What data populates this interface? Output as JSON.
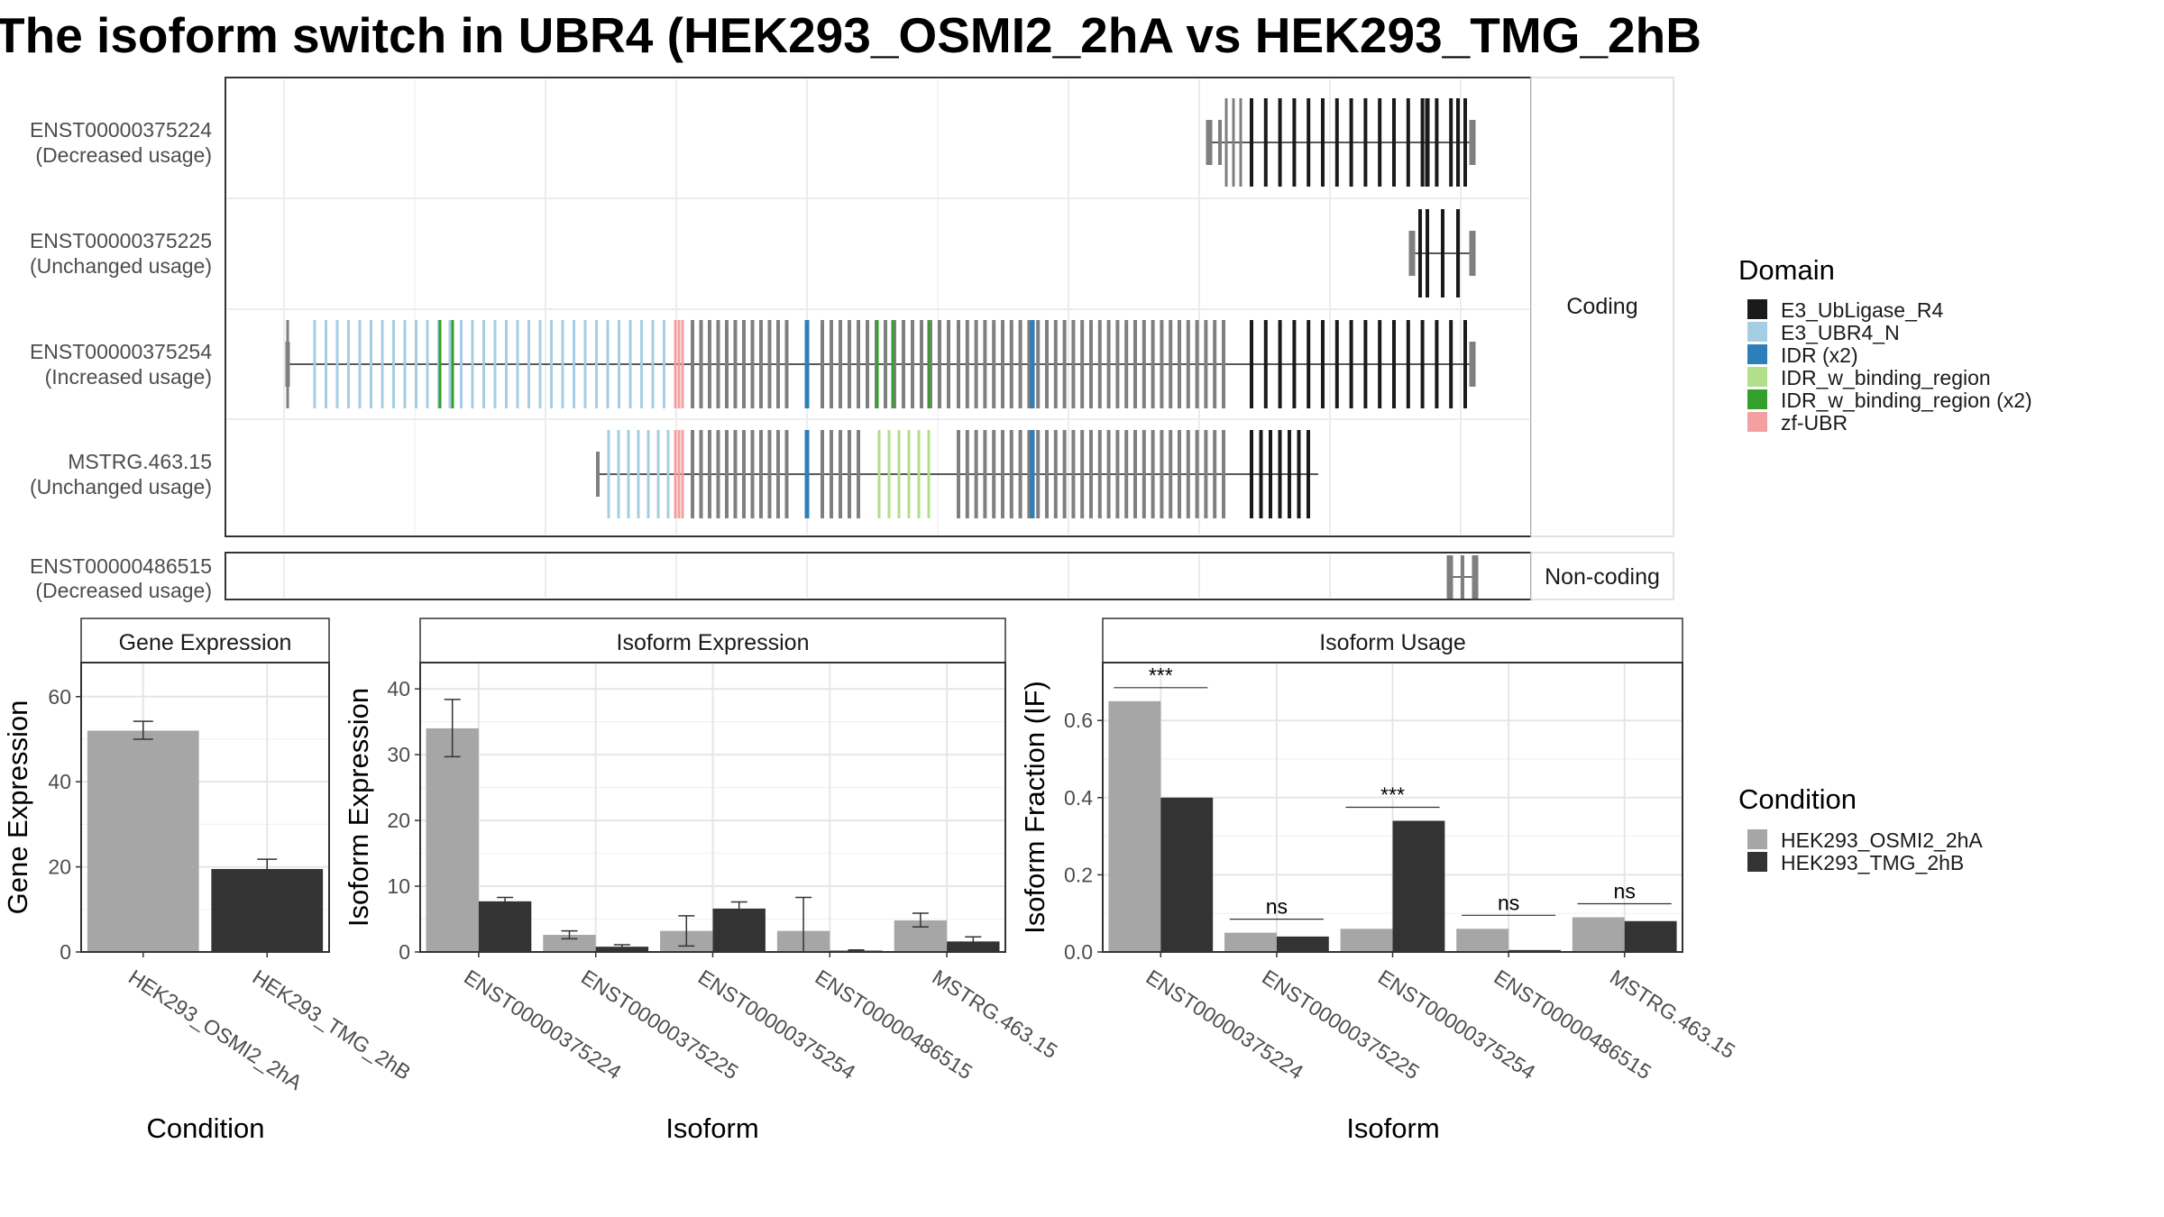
{
  "title": "The isoform switch in UBR4 (HEK293_OSMI2_2hA vs HEK293_TMG_2hB",
  "colors": {
    "coding_exon": "#7f7f7f",
    "intron_line": "#404040",
    "E3_UbLigase_R4": "#1a1a1a",
    "E3_UBR4_N": "#a6cee3",
    "IDR (x2)": "#2c7fb8",
    "IDR_w_binding_region": "#b2df8a",
    "IDR_w_binding_region (x2)": "#33a02c",
    "zf-UBR": "#f4a0a0",
    "HEK293_OSMI2_2hA": "#a6a6a6",
    "HEK293_TMG_2hB": "#333333"
  },
  "transcripts": {
    "coding_label": "Coding",
    "noncoding_label": "Non-coding",
    "coding": [
      {
        "id": "ENST00000375224",
        "status": "(Decreased usage)"
      },
      {
        "id": "ENST00000375225",
        "status": "(Unchanged usage)"
      },
      {
        "id": "ENST00000375254",
        "status": "(Increased usage)"
      },
      {
        "id": "MSTRG.463.15",
        "status": "(Unchanged usage)"
      }
    ],
    "noncoding": [
      {
        "id": "ENST00000486515",
        "status": "(Decreased usage)"
      }
    ]
  },
  "domain_legend": {
    "title": "Domain",
    "items": [
      "E3_UbLigase_R4",
      "E3_UBR4_N",
      "IDR (x2)",
      "IDR_w_binding_region",
      "IDR_w_binding_region (x2)",
      "zf-UBR"
    ]
  },
  "condition_legend": {
    "title": "Condition",
    "items": [
      "HEK293_OSMI2_2hA",
      "HEK293_TMG_2hB"
    ]
  },
  "chart_data": [
    {
      "type": "bar",
      "panel": "Gene Expression",
      "xlabel": "Condition",
      "ylabel": "Gene Expression",
      "ylim": [
        0,
        68
      ],
      "yticks": [
        0,
        20,
        40,
        60
      ],
      "grid": true,
      "categories": [
        "HEK293_OSMI2_2hA",
        "HEK293_TMG_2hB"
      ],
      "values": [
        52.0,
        19.5
      ],
      "error": [
        [
          50.0,
          54.2
        ],
        [
          17.2,
          21.8
        ]
      ]
    },
    {
      "type": "bar",
      "panel": "Isoform Expression",
      "xlabel": "Isoform",
      "ylabel": "Isoform Expression",
      "ylim": [
        0,
        44
      ],
      "yticks": [
        0,
        10,
        20,
        30,
        40
      ],
      "grid": true,
      "categories": [
        "ENST00000375224",
        "ENST00000375225",
        "ENST00000375254",
        "ENST00000486515",
        "MSTRG.463.15"
      ],
      "series": [
        {
          "name": "HEK293_OSMI2_2hA",
          "values": [
            34.0,
            2.6,
            3.2,
            3.2,
            4.8
          ],
          "error": [
            [
              29.7,
              38.4
            ],
            [
              2.0,
              3.2
            ],
            [
              0.9,
              5.5
            ],
            [
              0.0,
              8.3
            ],
            [
              3.8,
              5.9
            ]
          ]
        },
        {
          "name": "HEK293_TMG_2hB",
          "values": [
            7.7,
            0.8,
            6.6,
            0.2,
            1.6
          ],
          "error": [
            [
              7.1,
              8.3
            ],
            [
              0.5,
              1.1
            ],
            [
              5.5,
              7.6
            ],
            [
              0.1,
              0.3
            ],
            [
              1.0,
              2.3
            ]
          ]
        }
      ]
    },
    {
      "type": "bar",
      "panel": "Isoform Usage",
      "xlabel": "Isoform",
      "ylabel": "Isoform Fraction (IF)",
      "ylim": [
        0,
        0.75
      ],
      "yticks": [
        0.0,
        0.2,
        0.4,
        0.6
      ],
      "grid": true,
      "categories": [
        "ENST00000375224",
        "ENST00000375225",
        "ENST00000375254",
        "ENST00000486515",
        "MSTRG.463.15"
      ],
      "series": [
        {
          "name": "HEK293_OSMI2_2hA",
          "values": [
            0.65,
            0.05,
            0.06,
            0.06,
            0.09
          ]
        },
        {
          "name": "HEK293_TMG_2hB",
          "values": [
            0.4,
            0.04,
            0.34,
            0.005,
            0.08
          ]
        }
      ],
      "significance": [
        "***",
        "ns",
        "***",
        "ns",
        "ns"
      ]
    }
  ]
}
